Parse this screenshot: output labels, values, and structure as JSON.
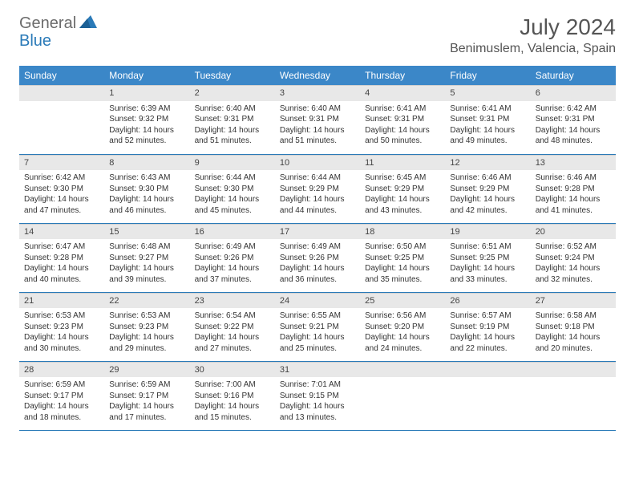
{
  "logo": {
    "text1": "General",
    "text2": "Blue"
  },
  "title": "July 2024",
  "location": "Benimuslem, Valencia, Spain",
  "colors": {
    "header_bg": "#3b87c8",
    "header_text": "#ffffff",
    "daynum_bg": "#e8e8e8",
    "rule": "#2a7ab8",
    "logo_gray": "#6b6b6b",
    "logo_blue": "#2a7ab8",
    "body_text": "#333333"
  },
  "daysOfWeek": [
    "Sunday",
    "Monday",
    "Tuesday",
    "Wednesday",
    "Thursday",
    "Friday",
    "Saturday"
  ],
  "weeks": [
    [
      {
        "num": "",
        "sunrise": "",
        "sunset": "",
        "daylight": ""
      },
      {
        "num": "1",
        "sunrise": "Sunrise: 6:39 AM",
        "sunset": "Sunset: 9:32 PM",
        "daylight": "Daylight: 14 hours and 52 minutes."
      },
      {
        "num": "2",
        "sunrise": "Sunrise: 6:40 AM",
        "sunset": "Sunset: 9:31 PM",
        "daylight": "Daylight: 14 hours and 51 minutes."
      },
      {
        "num": "3",
        "sunrise": "Sunrise: 6:40 AM",
        "sunset": "Sunset: 9:31 PM",
        "daylight": "Daylight: 14 hours and 51 minutes."
      },
      {
        "num": "4",
        "sunrise": "Sunrise: 6:41 AM",
        "sunset": "Sunset: 9:31 PM",
        "daylight": "Daylight: 14 hours and 50 minutes."
      },
      {
        "num": "5",
        "sunrise": "Sunrise: 6:41 AM",
        "sunset": "Sunset: 9:31 PM",
        "daylight": "Daylight: 14 hours and 49 minutes."
      },
      {
        "num": "6",
        "sunrise": "Sunrise: 6:42 AM",
        "sunset": "Sunset: 9:31 PM",
        "daylight": "Daylight: 14 hours and 48 minutes."
      }
    ],
    [
      {
        "num": "7",
        "sunrise": "Sunrise: 6:42 AM",
        "sunset": "Sunset: 9:30 PM",
        "daylight": "Daylight: 14 hours and 47 minutes."
      },
      {
        "num": "8",
        "sunrise": "Sunrise: 6:43 AM",
        "sunset": "Sunset: 9:30 PM",
        "daylight": "Daylight: 14 hours and 46 minutes."
      },
      {
        "num": "9",
        "sunrise": "Sunrise: 6:44 AM",
        "sunset": "Sunset: 9:30 PM",
        "daylight": "Daylight: 14 hours and 45 minutes."
      },
      {
        "num": "10",
        "sunrise": "Sunrise: 6:44 AM",
        "sunset": "Sunset: 9:29 PM",
        "daylight": "Daylight: 14 hours and 44 minutes."
      },
      {
        "num": "11",
        "sunrise": "Sunrise: 6:45 AM",
        "sunset": "Sunset: 9:29 PM",
        "daylight": "Daylight: 14 hours and 43 minutes."
      },
      {
        "num": "12",
        "sunrise": "Sunrise: 6:46 AM",
        "sunset": "Sunset: 9:29 PM",
        "daylight": "Daylight: 14 hours and 42 minutes."
      },
      {
        "num": "13",
        "sunrise": "Sunrise: 6:46 AM",
        "sunset": "Sunset: 9:28 PM",
        "daylight": "Daylight: 14 hours and 41 minutes."
      }
    ],
    [
      {
        "num": "14",
        "sunrise": "Sunrise: 6:47 AM",
        "sunset": "Sunset: 9:28 PM",
        "daylight": "Daylight: 14 hours and 40 minutes."
      },
      {
        "num": "15",
        "sunrise": "Sunrise: 6:48 AM",
        "sunset": "Sunset: 9:27 PM",
        "daylight": "Daylight: 14 hours and 39 minutes."
      },
      {
        "num": "16",
        "sunrise": "Sunrise: 6:49 AM",
        "sunset": "Sunset: 9:26 PM",
        "daylight": "Daylight: 14 hours and 37 minutes."
      },
      {
        "num": "17",
        "sunrise": "Sunrise: 6:49 AM",
        "sunset": "Sunset: 9:26 PM",
        "daylight": "Daylight: 14 hours and 36 minutes."
      },
      {
        "num": "18",
        "sunrise": "Sunrise: 6:50 AM",
        "sunset": "Sunset: 9:25 PM",
        "daylight": "Daylight: 14 hours and 35 minutes."
      },
      {
        "num": "19",
        "sunrise": "Sunrise: 6:51 AM",
        "sunset": "Sunset: 9:25 PM",
        "daylight": "Daylight: 14 hours and 33 minutes."
      },
      {
        "num": "20",
        "sunrise": "Sunrise: 6:52 AM",
        "sunset": "Sunset: 9:24 PM",
        "daylight": "Daylight: 14 hours and 32 minutes."
      }
    ],
    [
      {
        "num": "21",
        "sunrise": "Sunrise: 6:53 AM",
        "sunset": "Sunset: 9:23 PM",
        "daylight": "Daylight: 14 hours and 30 minutes."
      },
      {
        "num": "22",
        "sunrise": "Sunrise: 6:53 AM",
        "sunset": "Sunset: 9:23 PM",
        "daylight": "Daylight: 14 hours and 29 minutes."
      },
      {
        "num": "23",
        "sunrise": "Sunrise: 6:54 AM",
        "sunset": "Sunset: 9:22 PM",
        "daylight": "Daylight: 14 hours and 27 minutes."
      },
      {
        "num": "24",
        "sunrise": "Sunrise: 6:55 AM",
        "sunset": "Sunset: 9:21 PM",
        "daylight": "Daylight: 14 hours and 25 minutes."
      },
      {
        "num": "25",
        "sunrise": "Sunrise: 6:56 AM",
        "sunset": "Sunset: 9:20 PM",
        "daylight": "Daylight: 14 hours and 24 minutes."
      },
      {
        "num": "26",
        "sunrise": "Sunrise: 6:57 AM",
        "sunset": "Sunset: 9:19 PM",
        "daylight": "Daylight: 14 hours and 22 minutes."
      },
      {
        "num": "27",
        "sunrise": "Sunrise: 6:58 AM",
        "sunset": "Sunset: 9:18 PM",
        "daylight": "Daylight: 14 hours and 20 minutes."
      }
    ],
    [
      {
        "num": "28",
        "sunrise": "Sunrise: 6:59 AM",
        "sunset": "Sunset: 9:17 PM",
        "daylight": "Daylight: 14 hours and 18 minutes."
      },
      {
        "num": "29",
        "sunrise": "Sunrise: 6:59 AM",
        "sunset": "Sunset: 9:17 PM",
        "daylight": "Daylight: 14 hours and 17 minutes."
      },
      {
        "num": "30",
        "sunrise": "Sunrise: 7:00 AM",
        "sunset": "Sunset: 9:16 PM",
        "daylight": "Daylight: 14 hours and 15 minutes."
      },
      {
        "num": "31",
        "sunrise": "Sunrise: 7:01 AM",
        "sunset": "Sunset: 9:15 PM",
        "daylight": "Daylight: 14 hours and 13 minutes."
      },
      {
        "num": "",
        "sunrise": "",
        "sunset": "",
        "daylight": ""
      },
      {
        "num": "",
        "sunrise": "",
        "sunset": "",
        "daylight": ""
      },
      {
        "num": "",
        "sunrise": "",
        "sunset": "",
        "daylight": ""
      }
    ]
  ]
}
